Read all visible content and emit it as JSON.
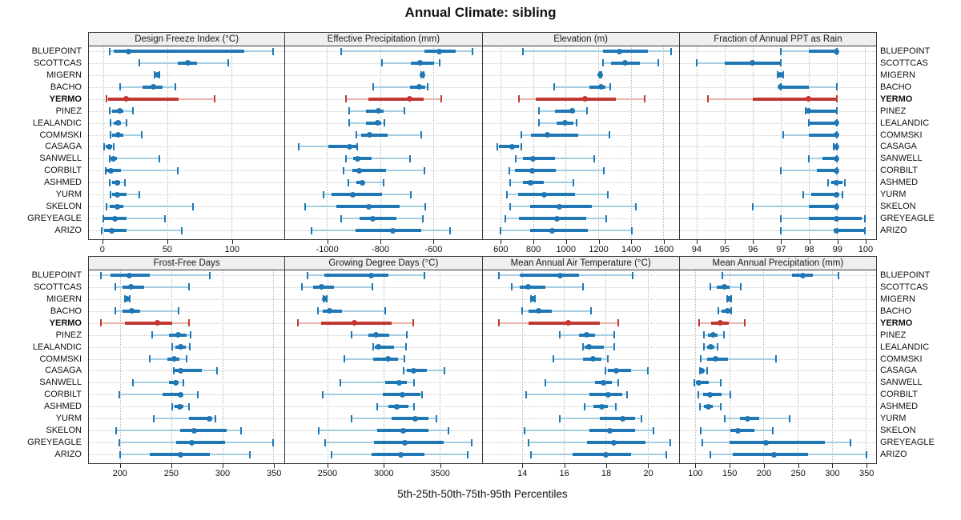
{
  "title": "Annual Climate: sibling",
  "caption": "5th-25th-50th-75th-95th Percentiles",
  "colors": {
    "series_blue": "#1f77b4",
    "series_blue_light": "#a6cee3",
    "highlight_red": "#c13832",
    "highlight_red_light": "#eab4ae",
    "header_bg": "#efefef",
    "panel_border": "#3a3a3a",
    "gridline": "#b9b9b9"
  },
  "chart_data": {
    "type": "scatter",
    "subtype": "trellis-percentile-dotplot",
    "percentiles": [
      5,
      25,
      50,
      75,
      95
    ],
    "legend_position": "none",
    "grid": true,
    "sites": [
      "BLUEPOINT",
      "SCOTTCAS",
      "MIGERN",
      "BACHO",
      "YERMO",
      "PINEZ",
      "LEALANDIC",
      "COMMSKI",
      "CASAGA",
      "SANWELL",
      "CORBILT",
      "ASHMED",
      "YURM",
      "SKELON",
      "GREYEAGLE",
      "ARIZO"
    ],
    "highlight_site": "YERMO",
    "panels": [
      {
        "title": "Design Freeze Index (°C)",
        "domain": [
          -11,
          141
        ],
        "ticks": [
          0,
          50,
          100
        ],
        "values": [
          [
            5,
            8,
            20,
            110,
            132
          ],
          [
            28,
            58,
            66,
            73,
            97
          ],
          [
            40,
            41,
            42,
            43,
            44
          ],
          [
            13,
            31,
            39,
            46,
            56
          ],
          [
            3,
            4,
            18,
            59,
            87
          ],
          [
            5,
            7,
            13,
            16,
            23
          ],
          [
            6,
            8,
            12,
            14,
            18
          ],
          [
            6,
            7,
            12,
            16,
            30
          ],
          [
            1,
            2,
            5,
            7,
            8
          ],
          [
            5,
            6,
            8,
            11,
            44
          ],
          [
            2,
            3,
            6,
            14,
            58
          ],
          [
            5,
            7,
            11,
            13,
            17
          ],
          [
            6,
            7,
            11,
            18,
            28
          ],
          [
            3,
            5,
            11,
            16,
            70
          ],
          [
            0,
            1,
            9,
            18,
            48
          ],
          [
            -1,
            1,
            7,
            18,
            61
          ]
        ]
      },
      {
        "title": "Effective Precipitation (mm)",
        "domain": [
          -1158,
          -416
        ],
        "ticks": [
          -1000,
          -800,
          -600
        ],
        "values": [
          [
            -947,
            -633,
            -575,
            -514,
            -452
          ],
          [
            -793,
            -683,
            -648,
            -596,
            -576
          ],
          [
            -645,
            -643,
            -641,
            -639,
            -636
          ],
          [
            -825,
            -686,
            -653,
            -630,
            -621
          ],
          [
            -928,
            -845,
            -687,
            -636,
            -568
          ],
          [
            -918,
            -852,
            -807,
            -787,
            -707
          ],
          [
            -916,
            -853,
            -810,
            -795,
            -785
          ],
          [
            -891,
            -871,
            -840,
            -772,
            -643
          ],
          [
            -1108,
            -994,
            -914,
            -888,
            -886
          ],
          [
            -928,
            -901,
            -884,
            -832,
            -687
          ],
          [
            -938,
            -906,
            -879,
            -778,
            -633
          ],
          [
            -921,
            -888,
            -866,
            -858,
            -788
          ],
          [
            -1014,
            -982,
            -904,
            -792,
            -684
          ],
          [
            -1083,
            -964,
            -842,
            -727,
            -630
          ],
          [
            -948,
            -878,
            -827,
            -739,
            -638
          ],
          [
            -1060,
            -892,
            -752,
            -643,
            -534
          ]
        ]
      },
      {
        "title": "Elevation (m)",
        "domain": [
          488,
          1697
        ],
        "ticks": [
          600,
          800,
          1000,
          1200,
          1400,
          1600
        ],
        "values": [
          [
            735,
            1232,
            1330,
            1508,
            1651
          ],
          [
            1228,
            1278,
            1365,
            1459,
            1569
          ],
          [
            1210,
            1213,
            1215,
            1217,
            1220
          ],
          [
            929,
            1146,
            1217,
            1245,
            1274
          ],
          [
            710,
            817,
            1118,
            1307,
            1488
          ],
          [
            834,
            936,
            1039,
            1056,
            1133
          ],
          [
            834,
            945,
            998,
            1047,
            1067
          ],
          [
            727,
            784,
            888,
            1077,
            1269
          ],
          [
            579,
            590,
            672,
            710,
            727
          ],
          [
            694,
            735,
            801,
            936,
            1176
          ],
          [
            653,
            689,
            792,
            940,
            1236
          ],
          [
            656,
            738,
            784,
            863,
            1047
          ],
          [
            636,
            707,
            870,
            1056,
            1258
          ],
          [
            658,
            781,
            962,
            1159,
            1434
          ],
          [
            628,
            710,
            945,
            1126,
            1248
          ],
          [
            600,
            781,
            916,
            1135,
            1406
          ]
        ]
      },
      {
        "title": "Fraction of Annual PPT as Rain",
        "domain": [
          93.4,
          100.4
        ],
        "ticks": [
          94,
          95,
          96,
          97,
          98,
          99,
          100
        ],
        "values": [
          [
            97.0,
            98.0,
            99.0,
            99.0,
            99.0
          ],
          [
            94.0,
            95.0,
            96.0,
            97.0,
            97.0
          ],
          [
            96.9,
            97.0,
            97.0,
            97.0,
            97.1
          ],
          [
            97.0,
            97.0,
            97.0,
            98.0,
            99.0
          ],
          [
            94.4,
            96.0,
            98.0,
            99.0,
            99.0
          ],
          [
            97.9,
            98.0,
            98.0,
            99.0,
            99.0
          ],
          [
            98.0,
            98.0,
            99.0,
            99.0,
            99.0
          ],
          [
            97.1,
            98.0,
            99.0,
            99.0,
            99.0
          ],
          [
            98.9,
            99.0,
            99.0,
            99.0,
            99.0
          ],
          [
            98.0,
            98.5,
            99.0,
            99.0,
            99.0
          ],
          [
            97.0,
            98.3,
            99.0,
            99.0,
            99.0
          ],
          [
            98.7,
            98.8,
            99.0,
            99.2,
            99.3
          ],
          [
            97.8,
            98.1,
            99.0,
            99.1,
            99.2
          ],
          [
            96.0,
            98.0,
            99.0,
            99.0,
            99.0
          ],
          [
            97.0,
            98.0,
            99.0,
            99.9,
            100.0
          ],
          [
            97.0,
            98.9,
            99.0,
            100.0,
            100.0
          ]
        ]
      },
      {
        "title": "Frost-Free Days",
        "domain": [
          169,
          361
        ],
        "ticks": [
          200,
          250,
          300,
          350
        ],
        "values": [
          [
            181,
            190,
            209,
            229,
            288
          ],
          [
            195,
            202,
            210,
            223,
            267
          ],
          [
            204,
            205,
            206,
            207,
            209
          ],
          [
            195,
            202,
            211,
            219,
            257
          ],
          [
            181,
            204,
            236,
            251,
            267
          ],
          [
            231,
            248,
            257,
            265,
            269
          ],
          [
            251,
            254,
            259,
            264,
            268
          ],
          [
            229,
            246,
            253,
            258,
            265
          ],
          [
            252,
            253,
            259,
            280,
            295
          ],
          [
            212,
            248,
            254,
            257,
            262
          ],
          [
            199,
            241,
            259,
            261,
            276
          ],
          [
            251,
            253,
            258,
            262,
            267
          ],
          [
            233,
            267,
            287,
            290,
            293
          ],
          [
            196,
            259,
            272,
            304,
            318
          ],
          [
            199,
            255,
            270,
            303,
            350
          ],
          [
            200,
            229,
            259,
            288,
            327
          ]
        ]
      },
      {
        "title": "Growing Degree Days (°C)",
        "domain": [
          2126,
          3876
        ],
        "ticks": [
          2500,
          3000,
          3500
        ],
        "values": [
          [
            2321,
            2471,
            2893,
            3043,
            3364
          ],
          [
            2274,
            2376,
            2448,
            2560,
            2900
          ],
          [
            2465,
            2472,
            2479,
            2486,
            2493
          ],
          [
            2417,
            2460,
            2519,
            2631,
            3019
          ],
          [
            2241,
            2448,
            2745,
            3071,
            3269
          ],
          [
            2714,
            2864,
            2936,
            3055,
            3210
          ],
          [
            2912,
            2924,
            2952,
            3098,
            3202
          ],
          [
            2650,
            2912,
            3038,
            3131,
            3190
          ],
          [
            3179,
            3210,
            3269,
            3388,
            3543
          ],
          [
            2614,
            3019,
            3138,
            3210,
            3276
          ],
          [
            2460,
            2995,
            3167,
            3329,
            3345
          ],
          [
            2943,
            3043,
            3119,
            3226,
            3276
          ],
          [
            2714,
            3074,
            3281,
            3405,
            3476
          ],
          [
            2424,
            2943,
            3174,
            3400,
            3579
          ],
          [
            2479,
            2919,
            3193,
            3536,
            3788
          ],
          [
            2536,
            2893,
            3155,
            3369,
            3752
          ]
        ]
      },
      {
        "title": "Mean Annual Air Temperature (°C)",
        "domain": [
          12.1,
          21.5
        ],
        "ticks": [
          14,
          16,
          18,
          20
        ],
        "values": [
          [
            12.9,
            13.9,
            15.8,
            16.7,
            19.3
          ],
          [
            13.5,
            13.9,
            14.3,
            15.1,
            16.9
          ],
          [
            14.4,
            14.5,
            14.5,
            14.6,
            14.6
          ],
          [
            14.0,
            14.3,
            14.8,
            15.4,
            17.3
          ],
          [
            12.9,
            14.3,
            16.2,
            17.7,
            18.6
          ],
          [
            15.8,
            16.7,
            17.1,
            17.5,
            18.4
          ],
          [
            16.9,
            17.0,
            17.2,
            17.9,
            18.4
          ],
          [
            15.5,
            16.9,
            17.4,
            17.8,
            18.1
          ],
          [
            18.0,
            18.1,
            18.5,
            19.2,
            20.0
          ],
          [
            15.1,
            17.5,
            17.9,
            18.3,
            18.6
          ],
          [
            14.2,
            17.2,
            18.1,
            18.8,
            19.0
          ],
          [
            17.0,
            17.4,
            17.8,
            18.1,
            18.5
          ],
          [
            15.8,
            17.7,
            18.8,
            19.4,
            19.7
          ],
          [
            14.1,
            17.2,
            18.2,
            19.4,
            20.3
          ],
          [
            14.3,
            17.1,
            18.4,
            19.9,
            21.1
          ],
          [
            14.4,
            16.4,
            18.0,
            19.2,
            20.9
          ]
        ]
      },
      {
        "title": "Mean Annual Precipitation (mm)",
        "domain": [
          77,
          365
        ],
        "ticks": [
          100,
          150,
          200,
          250,
          300,
          350
        ],
        "values": [
          [
            140,
            242,
            258,
            272,
            310
          ],
          [
            122,
            131,
            142,
            150,
            167
          ],
          [
            146,
            148,
            149,
            150,
            152
          ],
          [
            134,
            138,
            147,
            151,
            152
          ],
          [
            106,
            123,
            137,
            149,
            173
          ],
          [
            112,
            118,
            126,
            133,
            142
          ],
          [
            112,
            117,
            123,
            128,
            133
          ],
          [
            108,
            117,
            129,
            148,
            218
          ],
          [
            107,
            108,
            110,
            113,
            117
          ],
          [
            99,
            101,
            105,
            120,
            137
          ],
          [
            104,
            111,
            121,
            138,
            151
          ],
          [
            107,
            112,
            119,
            126,
            137
          ],
          [
            143,
            165,
            177,
            194,
            238
          ],
          [
            108,
            151,
            163,
            186,
            214
          ],
          [
            110,
            150,
            203,
            290,
            327
          ],
          [
            122,
            155,
            215,
            265,
            351
          ]
        ]
      }
    ]
  }
}
